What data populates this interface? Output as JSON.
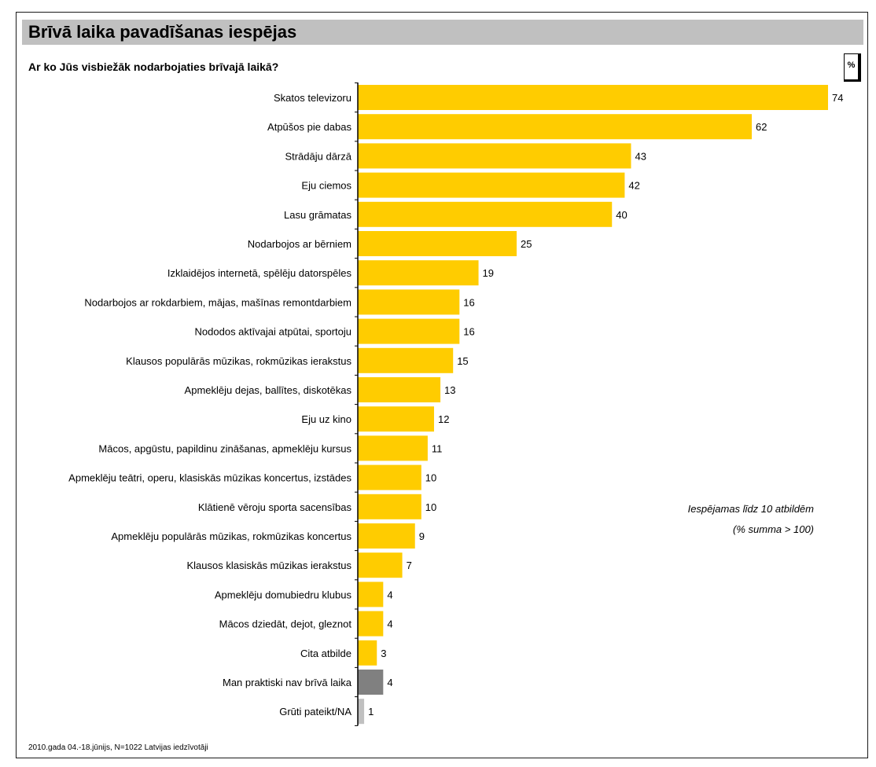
{
  "header": {
    "title": "Brīvā laika pavadīšanas iespējas",
    "question": "Ar ko Jūs visbiežāk nodarbojaties brīvajā laikā?",
    "unit": "%"
  },
  "notes": {
    "line1": "Iespējamas līdz 10 atbildēm",
    "line2": "(% summa > 100)"
  },
  "footnote": "2010.gada 04.-18.jūnijs, N=1022 Latvijas iedzīvotāji",
  "colors": {
    "main": "#ffcc00",
    "dark": "#808080",
    "light": "#c0c0c0"
  },
  "chart_data": {
    "type": "bar",
    "orientation": "horizontal",
    "xlim": [
      0,
      74
    ],
    "categories": [
      "Skatos televizoru",
      "Atpūšos pie dabas",
      "Strādāju dārzā",
      "Eju ciemos",
      "Lasu grāmatas",
      "Nodarbojos ar bērniem",
      "Izklaidējos internetā, spēlēju datorspēles",
      "Nodarbojos ar rokdarbiem, mājas, mašīnas remontdarbiem",
      "Nododos aktīvajai atpūtai, sportoju",
      "Klausos populārās mūzikas, rokmūzikas ierakstus",
      "Apmeklēju dejas, ballītes, diskotēkas",
      "Eju uz kino",
      "Mācos, apgūstu, papildinu zināšanas, apmeklēju kursus",
      "Apmeklēju teātri, operu, klasiskās mūzikas koncertus, izstādes",
      "Klātienē vēroju sporta sacensības",
      "Apmeklēju populārās mūzikas, rokmūzikas koncertus",
      "Klausos klasiskās mūzikas ierakstus",
      "Apmeklēju domubiedru klubus",
      "Mācos dziedāt, dejot, gleznot",
      "Cita atbilde",
      "Man praktiski nav brīvā laika",
      "Grūti pateikt/NA"
    ],
    "values": [
      74,
      62,
      43,
      42,
      40,
      25,
      19,
      16,
      16,
      15,
      13,
      12,
      11,
      10,
      10,
      9,
      7,
      4,
      4,
      3,
      4,
      1
    ],
    "bar_colors": [
      "main",
      "main",
      "main",
      "main",
      "main",
      "main",
      "main",
      "main",
      "main",
      "main",
      "main",
      "main",
      "main",
      "main",
      "main",
      "main",
      "main",
      "main",
      "main",
      "main",
      "dark",
      "light"
    ]
  }
}
